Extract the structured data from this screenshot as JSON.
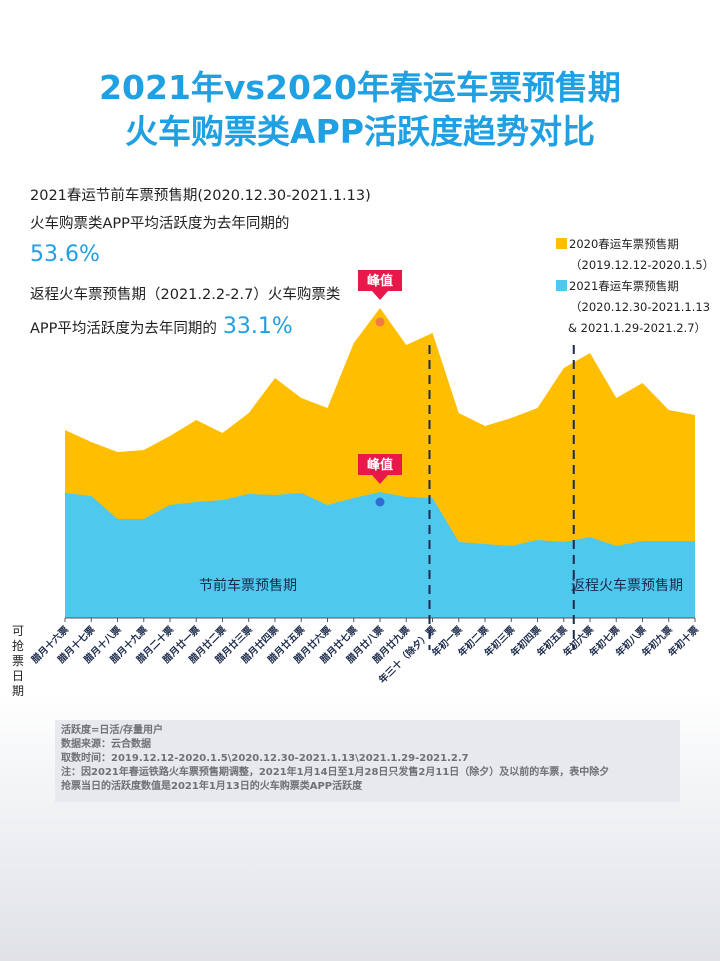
{
  "title": {
    "line1": "2021年vs2020年春运车票预售期",
    "line2": "火车购票类APP活跃度趋势对比"
  },
  "summary": {
    "line1": "2021春运节前车票预售期(2020.12.30-2021.1.13)",
    "line2": "火车购票类APP平均活跃度为去年同期的",
    "value1": "53.6%",
    "line3": "返程火车票预售期（2021.2.2-2.7）火车购票类",
    "line4": "APP平均活跃度为去年同期的",
    "value2": "33.1%"
  },
  "legend": {
    "s2020": "2020春运车票预售期",
    "s2020_range": "（2019.12.12-2020.1.5）",
    "s2021": "2021春运车票预售期",
    "s2021_range1": "（2020.12.30-2021.1.13",
    "s2021_range2": "& 2021.1.29-2021.2.7）"
  },
  "ylabel": "可抢票日期",
  "notes": {
    "n1": "活跃度=日活/存量用户",
    "n2": "数据来源：云合数据",
    "n3": "取数时间：2019.12.12-2020.1.5\\2020.12.30-2021.1.13\\2021.1.29-2021.2.7",
    "n4": "注：因2021年春运铁路火车票预售期调整，2021年1月14日至1月28日只发售2月11日（除夕）及以前的车票，表中除夕",
    "n5": "抢票当日的活跃度数值是2021年1月13日的火车购票类APP活跃度"
  },
  "colors": {
    "s2020": "#ffbe00",
    "s2021": "#4fc8ee",
    "title": "#1ea0e2",
    "peak": "#e8194a"
  },
  "chart_data": {
    "type": "area",
    "categories": [
      "腊月十六票",
      "腊月十七票",
      "腊月十八票",
      "腊月十九票",
      "腊月二十票",
      "腊月廿一票",
      "腊月廿二票",
      "腊月廿三票",
      "腊月廿四票",
      "腊月廿五票",
      "腊月廿六票",
      "腊月廿七票",
      "腊月廿八票",
      "腊月廿九票",
      "年三十（除夕）票",
      "年初一票",
      "年初二票",
      "年初三票",
      "年初四票",
      "年初五票",
      "年初六票",
      "年初七票",
      "年初八票",
      "年初九票",
      "年初十票"
    ],
    "series": [
      {
        "name": "2020春运车票预售期",
        "values": [
          188,
          176,
          166,
          168,
          182,
          198,
          185,
          205,
          240,
          220,
          210,
          275,
          310,
          273,
          285,
          205,
          192,
          200,
          210,
          250,
          265,
          220,
          235,
          208,
          203
        ]
      },
      {
        "name": "2021春运车票预售期",
        "values": [
          125,
          122,
          99,
          99,
          113,
          116,
          118,
          124,
          123,
          125,
          113,
          120,
          126,
          121,
          120,
          76,
          74,
          72,
          78,
          76,
          81,
          72,
          77,
          77,
          77
        ]
      }
    ],
    "ylim": [
      0,
      330
    ],
    "peak_label": "峰值",
    "peaks": [
      {
        "series": 0,
        "index": 12
      },
      {
        "series": 1,
        "index": 12
      }
    ],
    "period_dividers": [
      14,
      19
    ],
    "annotations": {
      "pre": "节前车票预售期",
      "return": "返程火车票预售期"
    },
    "grid": false
  }
}
